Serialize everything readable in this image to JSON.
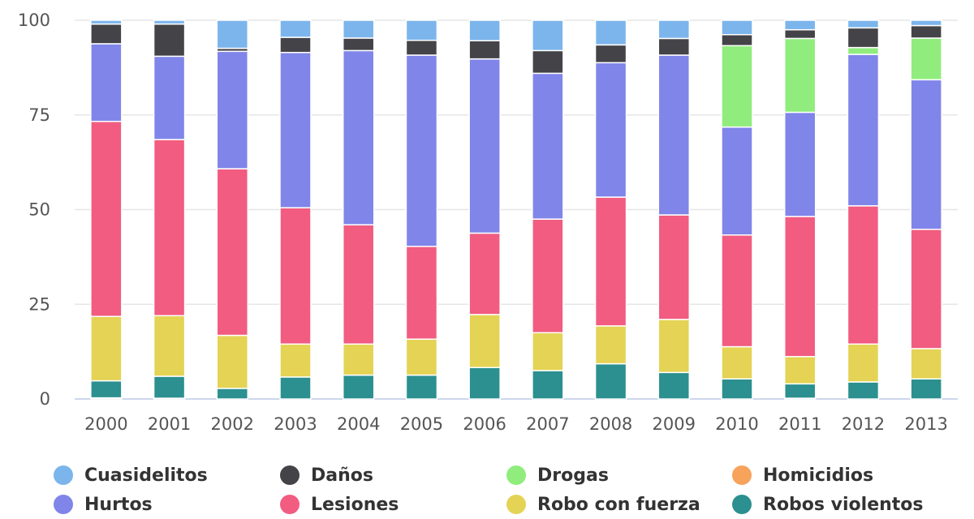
{
  "chart_data": {
    "type": "bar",
    "stacked": true,
    "title": "",
    "xlabel": "",
    "ylabel": "",
    "ylim": [
      0,
      100
    ],
    "yticks": [
      0,
      25,
      50,
      75,
      100
    ],
    "categories": [
      "2000",
      "2001",
      "2002",
      "2003",
      "2004",
      "2005",
      "2006",
      "2007",
      "2008",
      "2009",
      "2010",
      "2011",
      "2012",
      "2013"
    ],
    "series": [
      {
        "name": "Homicidios",
        "color": "#f7a35c",
        "values": [
          0.3,
          0.2,
          0,
          0,
          0,
          0,
          0,
          0,
          0,
          0,
          0,
          0.2,
          0,
          0
        ]
      },
      {
        "name": "Robos violentos",
        "color": "#2b908f",
        "values": [
          4.5,
          5.8,
          2.8,
          5.8,
          6.3,
          6.3,
          8.3,
          7.5,
          9.3,
          7.0,
          5.3,
          3.8,
          4.5,
          5.3
        ]
      },
      {
        "name": "Robo con fuerza",
        "color": "#e4d354",
        "values": [
          17,
          16,
          14,
          8.7,
          8.2,
          9.5,
          14,
          10,
          10,
          14,
          8.5,
          7.2,
          10,
          8
        ]
      },
      {
        "name": "Lesiones",
        "color": "#f15c80",
        "values": [
          51.5,
          46.5,
          44,
          36,
          31.5,
          24.5,
          21.5,
          30,
          34,
          27.6,
          29.5,
          37,
          36.5,
          31.5
        ]
      },
      {
        "name": "Hurtos",
        "color": "#8085e9",
        "values": [
          20.5,
          22,
          31,
          41,
          46,
          50.5,
          46,
          38.5,
          35.5,
          42.2,
          28.5,
          27.5,
          40,
          39.5
        ]
      },
      {
        "name": "Drogas",
        "color": "#90ed7d",
        "values": [
          0,
          0,
          0,
          0,
          0,
          0,
          0,
          0,
          0,
          0,
          21.5,
          19.5,
          1.8,
          11
        ]
      },
      {
        "name": "Daños",
        "color": "#434348",
        "values": [
          5.2,
          8.5,
          0.8,
          4.0,
          3.3,
          3.9,
          4.8,
          6.0,
          4.7,
          4.4,
          2.9,
          2.3,
          5.2,
          3.3
        ]
      },
      {
        "name": "Cuasidelitos",
        "color": "#7cb5ec",
        "values": [
          1,
          1,
          7.4,
          4.5,
          4.7,
          5.3,
          5.4,
          8,
          6.5,
          4.8,
          3.8,
          2.5,
          2,
          1.4
        ]
      }
    ],
    "legend_position": "bottom",
    "legend_order": [
      "Cuasidelitos",
      "Daños",
      "Drogas",
      "Homicidios",
      "Hurtos",
      "Lesiones",
      "Robo con fuerza",
      "Robos violentos"
    ]
  }
}
